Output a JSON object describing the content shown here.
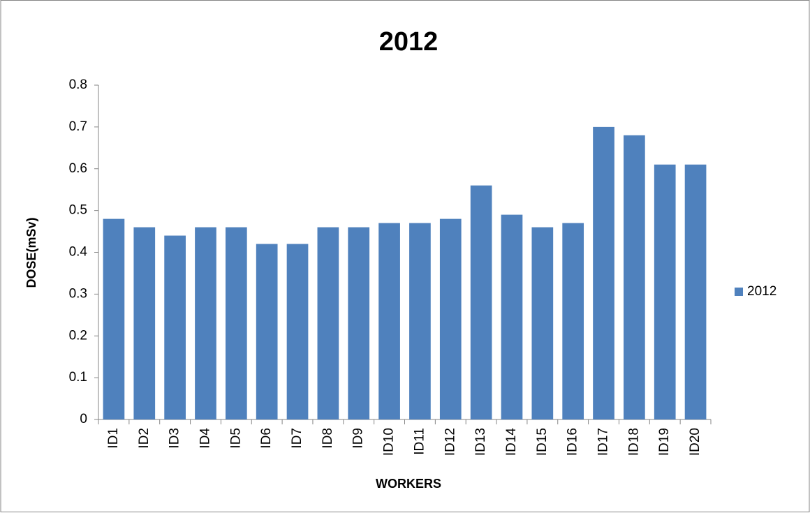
{
  "chart_data": {
    "type": "bar",
    "title": "2012",
    "x_label": "WORKERS",
    "y_label": "DOSE(mSv)",
    "categories": [
      "ID1",
      "ID2",
      "ID3",
      "ID4",
      "ID5",
      "ID6",
      "ID7",
      "ID8",
      "ID9",
      "ID10",
      "ID11",
      "ID12",
      "ID13",
      "ID14",
      "ID15",
      "ID16",
      "ID17",
      "ID18",
      "ID19",
      "ID20"
    ],
    "series": [
      {
        "name": "2012",
        "color": "#4f81bd",
        "values": [
          0.48,
          0.46,
          0.44,
          0.46,
          0.46,
          0.42,
          0.42,
          0.46,
          0.46,
          0.47,
          0.47,
          0.48,
          0.56,
          0.49,
          0.46,
          0.47,
          0.7,
          0.68,
          0.61,
          0.61
        ]
      }
    ],
    "ylim": [
      0,
      0.8
    ],
    "yticks": [
      0,
      0.1,
      0.2,
      0.3,
      0.4,
      0.5,
      0.6,
      0.7,
      0.8
    ],
    "legend": "right"
  }
}
